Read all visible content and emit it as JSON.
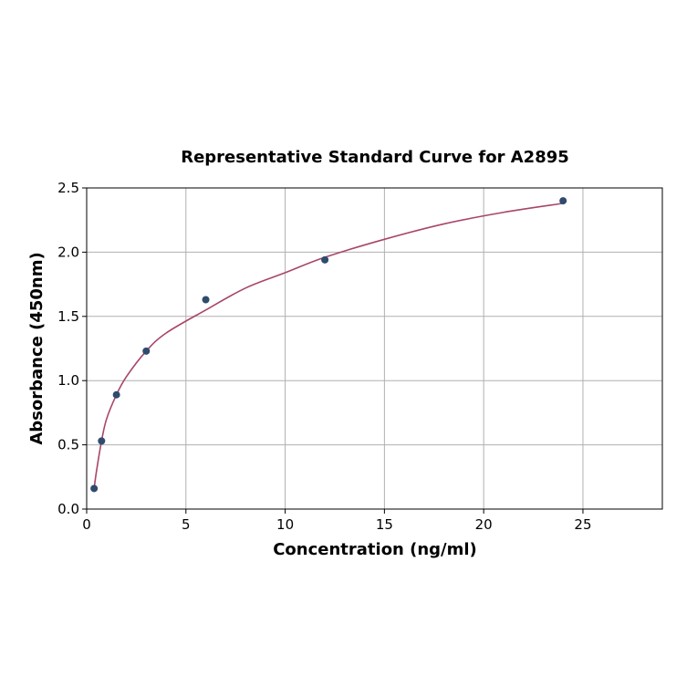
{
  "chart_data": {
    "type": "scatter",
    "title": "Representative Standard Curve for A2895",
    "xlabel": "Concentration (ng/ml)",
    "ylabel": "Absorbance (450nm)",
    "xlim": [
      0,
      29
    ],
    "ylim": [
      0,
      2.5
    ],
    "xticks": [
      0,
      5,
      10,
      15,
      20,
      25
    ],
    "yticks": [
      0.0,
      0.5,
      1.0,
      1.5,
      2.0,
      2.5
    ],
    "xtick_labels": [
      "0",
      "5",
      "10",
      "15",
      "20",
      "25"
    ],
    "ytick_labels": [
      "0.0",
      "0.5",
      "1.0",
      "1.5",
      "2.0",
      "2.5"
    ],
    "grid": true,
    "points": {
      "x": [
        0.375,
        0.75,
        1.5,
        3,
        6,
        12,
        24
      ],
      "y": [
        0.16,
        0.53,
        0.89,
        1.23,
        1.63,
        1.94,
        2.4
      ]
    },
    "fit_curve": {
      "x": [
        0.375,
        0.5,
        0.75,
        1,
        1.5,
        2,
        3,
        4,
        6,
        8,
        10,
        12,
        15,
        18,
        21,
        24
      ],
      "y": [
        0.16,
        0.3,
        0.53,
        0.7,
        0.89,
        1.03,
        1.23,
        1.37,
        1.55,
        1.72,
        1.84,
        1.96,
        2.1,
        2.22,
        2.31,
        2.38
      ]
    },
    "point_color": "#2f4b6e",
    "curve_color": "#a8456a"
  }
}
